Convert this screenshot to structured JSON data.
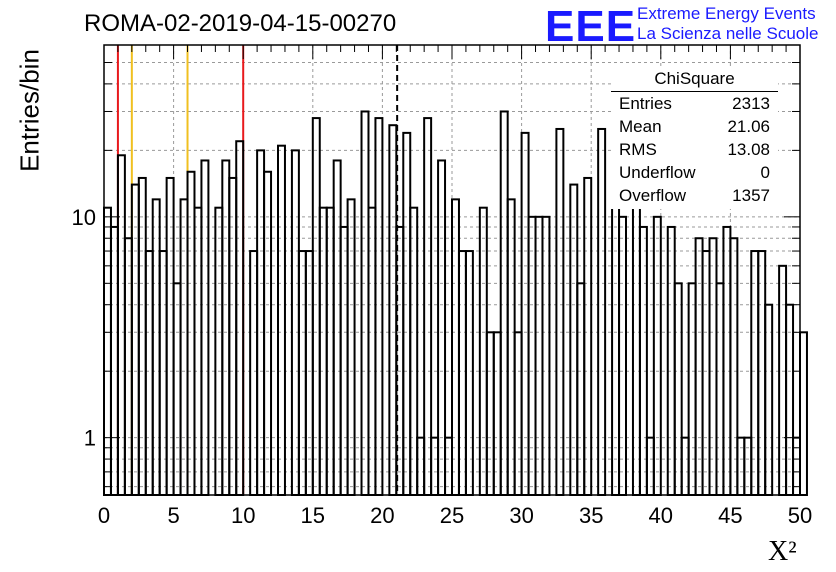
{
  "header": {
    "run_title": "ROMA-02-2019-04-15-00270",
    "logo_text": "EEE",
    "logo_line1": "Extreme Energy Events",
    "logo_line2": "La Scienza nelle Scuole"
  },
  "stats_box": {
    "title": "ChiSquare",
    "rows": [
      {
        "label": "Entries",
        "value": "2313"
      },
      {
        "label": "Mean",
        "value": "21.06"
      },
      {
        "label": "RMS",
        "value": "13.08"
      },
      {
        "label": "Underflow",
        "value": "0"
      },
      {
        "label": "Overflow",
        "value": "1357"
      }
    ]
  },
  "colors": {
    "red_line": "#e8191c",
    "yellow_line": "#f0c020",
    "histogram": "#000000",
    "grid": "#9a9a9a",
    "logo_blue": "#1a1aff"
  },
  "chart_data": {
    "type": "bar",
    "style": "step histogram",
    "title": "",
    "xlabel": "X²",
    "ylabel": "Entries/bin",
    "xlim": [
      0,
      50
    ],
    "ylim": [
      0.55,
      60
    ],
    "y_scale": "log",
    "grid": true,
    "bin_width": 0.5,
    "x_ticks": [
      "0",
      "5",
      "10",
      "15",
      "20",
      "25",
      "30",
      "35",
      "40",
      "45",
      "50"
    ],
    "y_ticks": [
      "1",
      "10"
    ],
    "reference_lines": [
      {
        "x": 1,
        "color": "red",
        "style": "solid"
      },
      {
        "x": 2,
        "color": "yellow",
        "style": "solid"
      },
      {
        "x": 6,
        "color": "yellow",
        "style": "solid"
      },
      {
        "x": 10,
        "color": "red",
        "style": "solid"
      },
      {
        "x": 21.06,
        "color": "black",
        "style": "dashed"
      }
    ],
    "values": [
      11,
      9,
      19,
      8,
      14,
      15,
      7,
      12,
      7,
      15,
      5,
      12,
      16,
      11,
      18,
      0,
      11,
      18,
      15,
      22,
      0,
      7,
      20,
      16,
      0,
      21,
      0,
      20,
      7,
      7,
      28,
      11,
      11,
      18,
      9,
      12,
      0,
      30,
      11,
      28,
      0,
      26,
      9,
      24,
      11,
      1,
      28,
      1,
      18,
      1,
      12,
      7,
      7,
      0,
      11,
      3,
      3,
      30,
      12,
      3,
      24,
      10,
      10,
      10,
      0,
      25,
      0,
      14,
      5,
      15,
      0,
      25,
      0,
      15,
      10,
      0,
      15,
      9,
      1,
      10,
      0,
      9,
      5,
      1,
      5,
      8,
      7,
      8,
      5,
      9,
      8,
      1,
      1,
      7,
      7,
      4,
      0,
      6,
      4,
      1,
      3
    ]
  }
}
